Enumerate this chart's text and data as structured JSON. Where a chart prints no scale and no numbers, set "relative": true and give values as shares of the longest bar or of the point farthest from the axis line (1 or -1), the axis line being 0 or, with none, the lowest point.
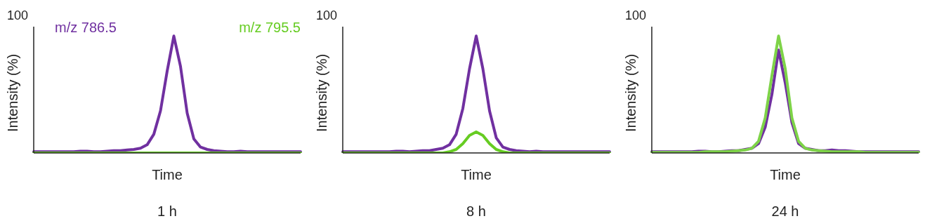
{
  "chart_data": [
    {
      "type": "line",
      "title": "1 h",
      "xlabel": "Time",
      "ylabel": "Intensity (%)",
      "relative": true,
      "annotations": [
        "100"
      ],
      "legend": "top",
      "marker": "none",
      "categories": [
        null,
        null,
        null,
        null,
        null,
        null,
        null,
        null,
        null,
        null,
        null,
        null,
        null,
        null,
        null,
        null,
        null,
        null,
        null,
        null,
        null,
        null,
        null,
        null,
        null,
        null,
        null,
        null,
        null,
        null,
        null,
        null,
        null,
        null,
        null,
        null,
        null,
        null,
        null,
        null,
        null
      ],
      "series": [
        {
          "name": "m/z 786.5",
          "color": "#7030a0",
          "values": [
            0.01,
            0.01,
            0.01,
            0.01,
            0.01,
            0.01,
            0.01,
            0.015,
            0.015,
            0.01,
            0.01,
            0.015,
            0.02,
            0.02,
            0.025,
            0.03,
            0.04,
            0.07,
            0.16,
            0.36,
            0.7,
            1,
            0.74,
            0.34,
            0.12,
            0.05,
            0.03,
            0.02,
            0.015,
            0.01,
            0.01,
            0.015,
            0.01,
            0.01,
            0.01,
            0.01,
            0.01,
            0.01,
            0.01,
            0.01,
            0.01
          ]
        },
        {
          "name": "m/z 795.5",
          "color": "#66cc22",
          "values": [
            0,
            0,
            0,
            0,
            0,
            0,
            0,
            0,
            0,
            0,
            0,
            0,
            0,
            0,
            0,
            0,
            0,
            0,
            0,
            0,
            0,
            0,
            0,
            0,
            0,
            0,
            0,
            0,
            0,
            0,
            0,
            0,
            0,
            0,
            0,
            0,
            0,
            0,
            0,
            0,
            0
          ]
        }
      ]
    },
    {
      "type": "line",
      "title": "8 h",
      "xlabel": "Time",
      "ylabel": "Intensity (%)",
      "relative": true,
      "annotations": [
        "100"
      ],
      "legend": false,
      "marker": "none",
      "categories": [
        null,
        null,
        null,
        null,
        null,
        null,
        null,
        null,
        null,
        null,
        null,
        null,
        null,
        null,
        null,
        null,
        null,
        null,
        null,
        null,
        null,
        null,
        null,
        null,
        null,
        null,
        null,
        null,
        null,
        null,
        null,
        null,
        null,
        null,
        null,
        null,
        null,
        null,
        null,
        null,
        null
      ],
      "series": [
        {
          "color": "#7030a0",
          "values": [
            0.01,
            0.01,
            0.01,
            0.01,
            0.01,
            0.01,
            0.01,
            0.01,
            0.015,
            0.015,
            0.01,
            0.015,
            0.02,
            0.02,
            0.03,
            0.04,
            0.07,
            0.16,
            0.38,
            0.72,
            1,
            0.72,
            0.36,
            0.13,
            0.05,
            0.03,
            0.02,
            0.015,
            0.01,
            0.015,
            0.01,
            0.01,
            0.01,
            0.01,
            0.01,
            0.01,
            0.01,
            0.01,
            0.01,
            0.01,
            0.01
          ]
        },
        {
          "color": "#66cc22",
          "values": [
            0,
            0,
            0,
            0,
            0,
            0,
            0,
            0,
            0,
            0,
            0,
            0,
            0,
            0,
            0,
            0,
            0.01,
            0.03,
            0.08,
            0.15,
            0.18,
            0.15,
            0.08,
            0.03,
            0.01,
            0,
            0,
            0,
            0,
            0,
            0,
            0,
            0,
            0,
            0,
            0,
            0,
            0,
            0,
            0,
            0
          ]
        }
      ]
    },
    {
      "type": "line",
      "title": "24 h",
      "xlabel": "Time",
      "ylabel": "Intensity (%)",
      "relative": true,
      "annotations": [
        "100"
      ],
      "legend": false,
      "marker": "none",
      "categories": [
        null,
        null,
        null,
        null,
        null,
        null,
        null,
        null,
        null,
        null,
        null,
        null,
        null,
        null,
        null,
        null,
        null,
        null,
        null,
        null,
        null,
        null,
        null,
        null,
        null,
        null,
        null,
        null,
        null,
        null,
        null,
        null,
        null,
        null,
        null,
        null,
        null,
        null,
        null,
        null,
        null
      ],
      "series": [
        {
          "color": "#7030a0",
          "values": [
            0.01,
            0.01,
            0.01,
            0.01,
            0.01,
            0.01,
            0.01,
            0.015,
            0.015,
            0.01,
            0.01,
            0.015,
            0.02,
            0.02,
            0.03,
            0.04,
            0.08,
            0.22,
            0.5,
            0.88,
            0.6,
            0.26,
            0.08,
            0.04,
            0.03,
            0.02,
            0.02,
            0.025,
            0.02,
            0.02,
            0.015,
            0.01,
            0.01,
            0.01,
            0.01,
            0.01,
            0.01,
            0.01,
            0.01,
            0.01,
            0.01
          ]
        },
        {
          "color": "#7ed348",
          "values": [
            0.005,
            0.005,
            0.005,
            0.005,
            0.005,
            0.005,
            0.005,
            0.005,
            0.01,
            0.01,
            0.01,
            0.01,
            0.015,
            0.02,
            0.025,
            0.04,
            0.1,
            0.3,
            0.66,
            1,
            0.72,
            0.3,
            0.1,
            0.04,
            0.025,
            0.02,
            0.015,
            0.01,
            0.01,
            0.01,
            0.01,
            0.01,
            0.005,
            0.005,
            0.005,
            0.005,
            0.005,
            0.005,
            0.005,
            0.005,
            0.005
          ]
        }
      ]
    }
  ]
}
